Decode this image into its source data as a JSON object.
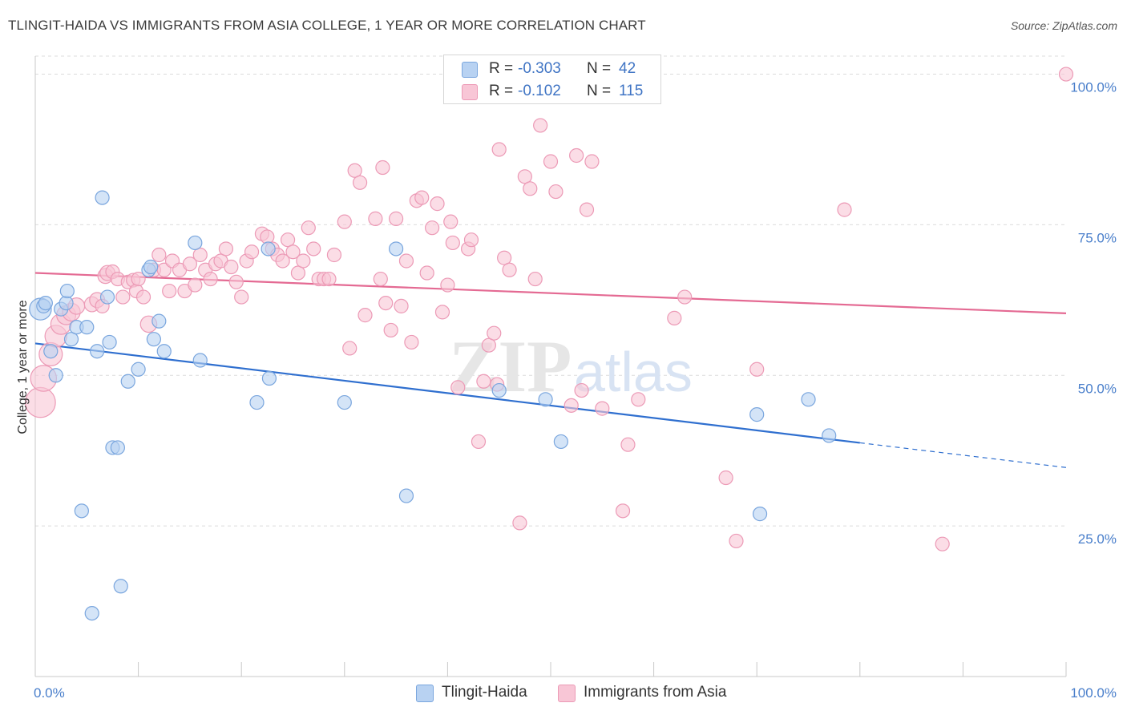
{
  "header": {
    "title": "TLINGIT-HAIDA VS IMMIGRANTS FROM ASIA COLLEGE, 1 YEAR OR MORE CORRELATION CHART",
    "source": "Source: ZipAtlas.com"
  },
  "colors": {
    "blue_fill": "#b8d2f2",
    "blue_stroke": "#7aa6de",
    "blue_line": "#2f6fcf",
    "pink_fill": "#f8c6d6",
    "pink_stroke": "#ec9ab6",
    "pink_line": "#e46a93",
    "grid": "#dcdcdc",
    "tick_text": "#4a7fcb"
  },
  "legend_top": {
    "rows": [
      {
        "r_label": "R =",
        "r_value": "-0.303",
        "n_label": "N =",
        "n_value": "42"
      },
      {
        "r_label": "R =",
        "r_value": "-0.102",
        "n_label": "N =",
        "n_value": "115"
      }
    ]
  },
  "legend_bottom": {
    "items": [
      {
        "label": "Tlingit-Haida"
      },
      {
        "label": "Immigrants from Asia"
      }
    ]
  },
  "chart_data": {
    "type": "scatter",
    "title": "TLINGIT-HAIDA VS IMMIGRANTS FROM ASIA COLLEGE, 1 YEAR OR MORE CORRELATION CHART",
    "xlabel": "",
    "ylabel": "College, 1 year or more",
    "xlim": [
      0,
      100
    ],
    "ylim": [
      0,
      103
    ],
    "x_tick_labels": [
      "0.0%",
      "100.0%"
    ],
    "y_ticks": [
      25,
      50,
      75,
      100
    ],
    "y_tick_labels": [
      "25.0%",
      "50.0%",
      "75.0%",
      "100.0%"
    ],
    "grid": true,
    "watermark": "ZIPatlas",
    "series": [
      {
        "name": "Tlingit-Haida",
        "r": -0.303,
        "n": 42,
        "trend": {
          "x0": 0,
          "y0": 55.3,
          "x1": 80,
          "y1": 38.8,
          "dash_to_x": 100,
          "dash_to_y": 34.7
        },
        "points": [
          [
            0.5,
            61
          ],
          [
            0.8,
            61.5
          ],
          [
            1,
            62
          ],
          [
            1.5,
            54
          ],
          [
            2,
            50
          ],
          [
            2.5,
            61
          ],
          [
            3,
            62
          ],
          [
            3.1,
            64
          ],
          [
            3.5,
            56
          ],
          [
            4,
            58
          ],
          [
            4.5,
            27.5
          ],
          [
            5,
            58
          ],
          [
            5.5,
            10.5
          ],
          [
            6,
            54
          ],
          [
            6.5,
            79.5
          ],
          [
            7,
            63
          ],
          [
            7.2,
            55.5
          ],
          [
            7.5,
            38
          ],
          [
            8,
            38
          ],
          [
            8.3,
            15
          ],
          [
            9,
            49
          ],
          [
            10,
            51
          ],
          [
            11,
            67.5
          ],
          [
            11.2,
            68
          ],
          [
            11.5,
            56
          ],
          [
            12,
            59
          ],
          [
            12.5,
            54
          ],
          [
            15.5,
            72
          ],
          [
            16,
            52.5
          ],
          [
            21.5,
            45.5
          ],
          [
            22.6,
            71
          ],
          [
            22.7,
            49.5
          ],
          [
            30,
            45.5
          ],
          [
            35,
            71
          ],
          [
            36,
            30
          ],
          [
            45,
            47.5
          ],
          [
            49.5,
            46
          ],
          [
            51,
            39
          ],
          [
            70,
            43.5
          ],
          [
            70.3,
            27
          ],
          [
            75,
            46
          ],
          [
            77,
            40
          ]
        ],
        "point_sizes": [
          1.6,
          1,
          1,
          1,
          1,
          1,
          1,
          1,
          1,
          1,
          1,
          1,
          1,
          1,
          1,
          1,
          1,
          1,
          1,
          1,
          1,
          1,
          1,
          1,
          1,
          1,
          1,
          1,
          1,
          1,
          1,
          1,
          1,
          1,
          1,
          1,
          1,
          1,
          1,
          1,
          1,
          1
        ]
      },
      {
        "name": "Immigrants from Asia",
        "r": -0.102,
        "n": 115,
        "trend": {
          "x0": 0,
          "y0": 67,
          "x1": 100,
          "y1": 60.3
        },
        "points": [
          [
            0.5,
            45.5
          ],
          [
            0.8,
            49.5
          ],
          [
            1.5,
            53.5
          ],
          [
            2,
            56.5
          ],
          [
            2.5,
            58.5
          ],
          [
            3,
            60
          ],
          [
            3.5,
            60.5
          ],
          [
            4,
            61.5
          ],
          [
            5.5,
            61.8
          ],
          [
            6,
            62.5
          ],
          [
            6.5,
            61.5
          ],
          [
            6.8,
            66.5
          ],
          [
            7,
            67
          ],
          [
            7.5,
            67.2
          ],
          [
            8,
            66
          ],
          [
            8.5,
            63
          ],
          [
            9,
            65.5
          ],
          [
            9.5,
            65.8
          ],
          [
            9.8,
            64
          ],
          [
            10,
            66
          ],
          [
            10.5,
            63
          ],
          [
            11,
            58.5
          ],
          [
            11.5,
            67.5
          ],
          [
            12,
            70
          ],
          [
            12.5,
            67.5
          ],
          [
            13,
            64
          ],
          [
            13.3,
            69
          ],
          [
            14,
            67.5
          ],
          [
            14.5,
            64
          ],
          [
            15,
            68.5
          ],
          [
            15.5,
            65
          ],
          [
            16,
            70
          ],
          [
            16.5,
            67.5
          ],
          [
            17,
            66
          ],
          [
            17.5,
            68.5
          ],
          [
            18,
            69
          ],
          [
            18.5,
            71
          ],
          [
            19,
            68
          ],
          [
            19.5,
            65.5
          ],
          [
            20,
            63
          ],
          [
            20.5,
            69
          ],
          [
            21,
            70.5
          ],
          [
            22,
            73.5
          ],
          [
            22.5,
            73
          ],
          [
            23,
            71
          ],
          [
            23.5,
            70
          ],
          [
            24,
            69
          ],
          [
            24.5,
            72.5
          ],
          [
            25,
            70.5
          ],
          [
            25.5,
            67
          ],
          [
            26,
            69
          ],
          [
            26.5,
            74.5
          ],
          [
            27,
            71
          ],
          [
            27.5,
            66
          ],
          [
            28,
            66
          ],
          [
            28.5,
            66
          ],
          [
            29,
            70
          ],
          [
            30,
            75.5
          ],
          [
            30.5,
            54.5
          ],
          [
            31,
            84
          ],
          [
            31.5,
            82
          ],
          [
            32,
            60
          ],
          [
            33,
            76
          ],
          [
            33.5,
            66
          ],
          [
            34,
            62
          ],
          [
            34.5,
            57.5
          ],
          [
            35,
            76
          ],
          [
            35.5,
            61.5
          ],
          [
            36,
            69
          ],
          [
            36.5,
            55.5
          ],
          [
            37,
            79
          ],
          [
            37.5,
            79.5
          ],
          [
            38,
            67
          ],
          [
            38.5,
            74.5
          ],
          [
            39,
            78.5
          ],
          [
            40,
            65
          ],
          [
            40.3,
            75.5
          ],
          [
            40.5,
            72
          ],
          [
            41,
            48
          ],
          [
            42,
            71
          ],
          [
            42.3,
            72.5
          ],
          [
            43,
            39
          ],
          [
            43.5,
            49
          ],
          [
            44,
            55
          ],
          [
            44.5,
            57
          ],
          [
            45,
            87.5
          ],
          [
            45.5,
            69.5
          ],
          [
            46,
            67.5
          ],
          [
            47,
            25.5
          ],
          [
            47.5,
            83
          ],
          [
            48,
            81
          ],
          [
            48.5,
            66
          ],
          [
            49,
            91.5
          ],
          [
            50,
            85.5
          ],
          [
            52,
            45
          ],
          [
            52.5,
            86.5
          ],
          [
            53,
            47.5
          ],
          [
            53.5,
            77.5
          ],
          [
            54,
            85.5
          ],
          [
            55,
            44.5
          ],
          [
            57,
            27.5
          ],
          [
            57.5,
            38.5
          ],
          [
            58.5,
            46
          ],
          [
            62,
            59.5
          ],
          [
            63,
            63
          ],
          [
            67,
            33
          ],
          [
            68,
            22.5
          ],
          [
            70,
            51
          ],
          [
            78.5,
            77.5
          ],
          [
            88,
            22
          ],
          [
            100,
            100
          ],
          [
            44.8,
            48.5
          ],
          [
            50.5,
            80.5
          ],
          [
            39.5,
            60.5
          ],
          [
            33.7,
            84.5
          ]
        ],
        "point_sizes": [
          2.2,
          1.9,
          1.7,
          1.6,
          1.5,
          1.4,
          1.3,
          1.2,
          1.1,
          1.1,
          1,
          1.1,
          1.1,
          1,
          1,
          1,
          1,
          1,
          1,
          1,
          1,
          1.2,
          1,
          1,
          1,
          1,
          1,
          1,
          1,
          1,
          1,
          1,
          1,
          1,
          1,
          1,
          1,
          1,
          1,
          1,
          1,
          1,
          1,
          1,
          1,
          1,
          1,
          1,
          1,
          1,
          1,
          1,
          1,
          1,
          1,
          1,
          1,
          1,
          1,
          1,
          1,
          1,
          1,
          1,
          1,
          1,
          1,
          1,
          1,
          1,
          1,
          1,
          1,
          1,
          1,
          1,
          1,
          1,
          1,
          1,
          1,
          1,
          1,
          1,
          1,
          1,
          1,
          1,
          1,
          1,
          1,
          1,
          1,
          1,
          1,
          1,
          1,
          1,
          1,
          1,
          1,
          1,
          1,
          1,
          1,
          1,
          1,
          1,
          1,
          1,
          1,
          1,
          1,
          1,
          1
        ]
      }
    ]
  }
}
